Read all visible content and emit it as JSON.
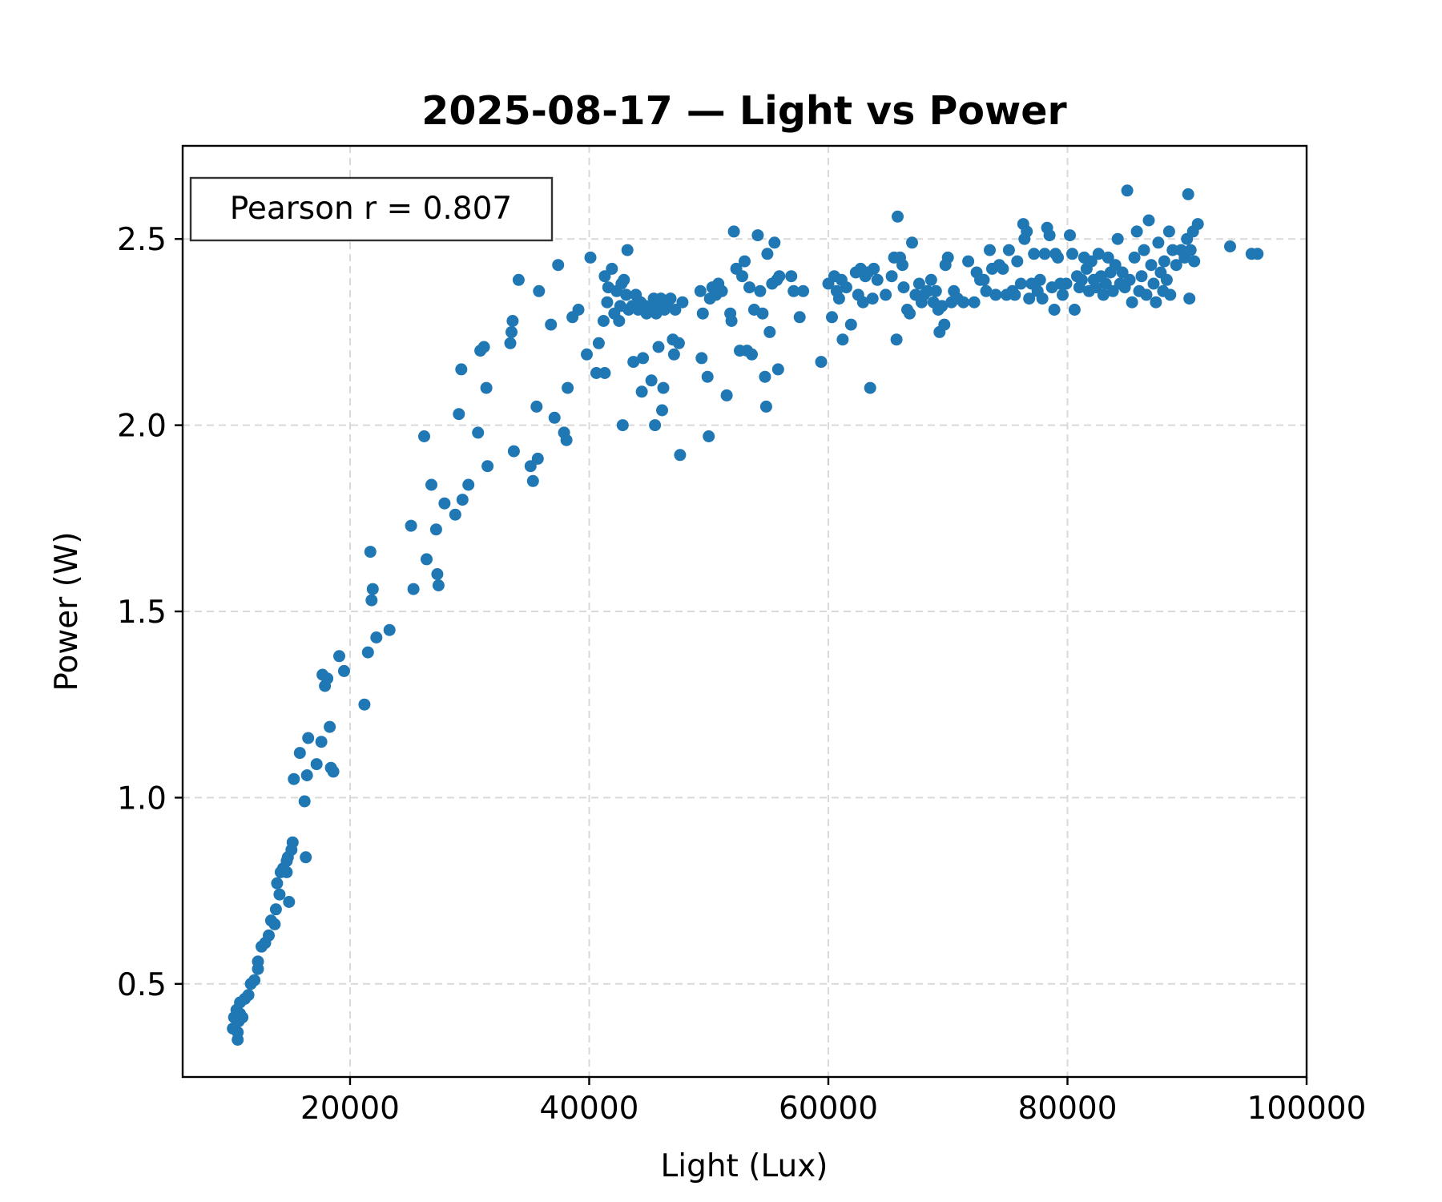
{
  "chart_data": {
    "type": "scatter",
    "title": "2025-08-17 — Light vs Power",
    "xlabel": "Light (Lux)",
    "ylabel": "Power (W)",
    "xlim": [
      6000,
      100000
    ],
    "ylim": [
      0.25,
      2.75
    ],
    "xticks": [
      20000,
      40000,
      60000,
      80000,
      100000
    ],
    "yticks": [
      0.5,
      1.0,
      1.5,
      2.0,
      2.5
    ],
    "xtick_labels": [
      "20000",
      "40000",
      "60000",
      "80000",
      "100000"
    ],
    "ytick_labels": [
      "0.5",
      "1.0",
      "1.5",
      "2.0",
      "2.5"
    ],
    "grid": true,
    "annotation": "Pearson r = 0.807",
    "annotation_placement": "top-left",
    "color": "#1f77b4",
    "points": [
      [
        10200,
        0.38
      ],
      [
        10300,
        0.41
      ],
      [
        10500,
        0.43
      ],
      [
        10600,
        0.35
      ],
      [
        10600,
        0.37
      ],
      [
        10700,
        0.4
      ],
      [
        10800,
        0.42
      ],
      [
        10800,
        0.45
      ],
      [
        11000,
        0.41
      ],
      [
        11200,
        0.46
      ],
      [
        11500,
        0.47
      ],
      [
        11700,
        0.5
      ],
      [
        12000,
        0.51
      ],
      [
        12300,
        0.54
      ],
      [
        12300,
        0.56
      ],
      [
        12600,
        0.6
      ],
      [
        12900,
        0.61
      ],
      [
        13200,
        0.63
      ],
      [
        13400,
        0.67
      ],
      [
        13700,
        0.66
      ],
      [
        13800,
        0.7
      ],
      [
        13900,
        0.77
      ],
      [
        14100,
        0.74
      ],
      [
        14200,
        0.8
      ],
      [
        14400,
        0.81
      ],
      [
        14700,
        0.83
      ],
      [
        14700,
        0.8
      ],
      [
        14800,
        0.84
      ],
      [
        14900,
        0.72
      ],
      [
        15100,
        0.86
      ],
      [
        15200,
        0.88
      ],
      [
        15300,
        1.05
      ],
      [
        15800,
        1.12
      ],
      [
        16200,
        0.99
      ],
      [
        16300,
        0.84
      ],
      [
        16400,
        1.06
      ],
      [
        16500,
        1.16
      ],
      [
        17200,
        1.09
      ],
      [
        17600,
        1.15
      ],
      [
        17700,
        1.33
      ],
      [
        17900,
        1.3
      ],
      [
        18100,
        1.32
      ],
      [
        18300,
        1.19
      ],
      [
        18400,
        1.08
      ],
      [
        18600,
        1.07
      ],
      [
        19100,
        1.38
      ],
      [
        19500,
        1.34
      ],
      [
        21200,
        1.25
      ],
      [
        21500,
        1.39
      ],
      [
        21700,
        1.66
      ],
      [
        21800,
        1.53
      ],
      [
        21900,
        1.56
      ],
      [
        22200,
        1.43
      ],
      [
        23300,
        1.45
      ],
      [
        25100,
        1.73
      ],
      [
        25300,
        1.56
      ],
      [
        26200,
        1.97
      ],
      [
        26400,
        1.64
      ],
      [
        26800,
        1.84
      ],
      [
        27200,
        1.72
      ],
      [
        27300,
        1.6
      ],
      [
        27400,
        1.57
      ],
      [
        27900,
        1.79
      ],
      [
        28800,
        1.76
      ],
      [
        29100,
        2.03
      ],
      [
        29300,
        2.15
      ],
      [
        29400,
        1.8
      ],
      [
        29900,
        1.84
      ],
      [
        30700,
        1.98
      ],
      [
        30900,
        2.2
      ],
      [
        31200,
        2.21
      ],
      [
        31400,
        2.1
      ],
      [
        31500,
        1.89
      ],
      [
        33400,
        2.22
      ],
      [
        33500,
        2.25
      ],
      [
        33600,
        2.28
      ],
      [
        33700,
        1.93
      ],
      [
        34100,
        2.39
      ],
      [
        35100,
        1.89
      ],
      [
        35300,
        1.85
      ],
      [
        35600,
        2.05
      ],
      [
        35700,
        1.91
      ],
      [
        35800,
        2.36
      ],
      [
        36800,
        2.27
      ],
      [
        37100,
        2.02
      ],
      [
        37400,
        2.43
      ],
      [
        37900,
        1.98
      ],
      [
        38100,
        1.96
      ],
      [
        38200,
        2.1
      ],
      [
        38600,
        2.29
      ],
      [
        39100,
        2.31
      ],
      [
        39800,
        2.19
      ],
      [
        40100,
        2.45
      ],
      [
        40600,
        2.14
      ],
      [
        40800,
        2.22
      ],
      [
        41300,
        2.14
      ],
      [
        41200,
        2.28
      ],
      [
        41300,
        2.4
      ],
      [
        41500,
        2.33
      ],
      [
        41600,
        2.37
      ],
      [
        41900,
        2.42
      ],
      [
        42100,
        2.3
      ],
      [
        42300,
        2.36
      ],
      [
        42500,
        2.28
      ],
      [
        42600,
        2.32
      ],
      [
        42700,
        2.38
      ],
      [
        42800,
        2.0
      ],
      [
        42900,
        2.39
      ],
      [
        43100,
        2.35
      ],
      [
        43200,
        2.47
      ],
      [
        43300,
        2.31
      ],
      [
        43600,
        2.32
      ],
      [
        43700,
        2.17
      ],
      [
        43900,
        2.35
      ],
      [
        44100,
        2.31
      ],
      [
        44300,
        2.33
      ],
      [
        44400,
        2.09
      ],
      [
        44500,
        2.18
      ],
      [
        44700,
        2.32
      ],
      [
        44800,
        2.3
      ],
      [
        45100,
        2.31
      ],
      [
        45200,
        2.12
      ],
      [
        45400,
        2.34
      ],
      [
        45500,
        2.0
      ],
      [
        45600,
        2.3
      ],
      [
        45700,
        2.33
      ],
      [
        45800,
        2.21
      ],
      [
        46000,
        2.34
      ],
      [
        46100,
        2.04
      ],
      [
        46200,
        2.1
      ],
      [
        46300,
        2.31
      ],
      [
        46500,
        2.33
      ],
      [
        46800,
        2.34
      ],
      [
        47000,
        2.23
      ],
      [
        47100,
        2.19
      ],
      [
        47200,
        2.31
      ],
      [
        47500,
        2.22
      ],
      [
        47600,
        1.92
      ],
      [
        47800,
        2.33
      ],
      [
        49300,
        2.36
      ],
      [
        49400,
        2.18
      ],
      [
        49500,
        2.3
      ],
      [
        49900,
        2.13
      ],
      [
        50000,
        1.97
      ],
      [
        50100,
        2.34
      ],
      [
        50300,
        2.37
      ],
      [
        50600,
        2.35
      ],
      [
        50800,
        2.38
      ],
      [
        51100,
        2.36
      ],
      [
        51500,
        2.08
      ],
      [
        51800,
        2.3
      ],
      [
        51900,
        2.28
      ],
      [
        52100,
        2.52
      ],
      [
        52300,
        2.42
      ],
      [
        52600,
        2.2
      ],
      [
        52800,
        2.4
      ],
      [
        53000,
        2.44
      ],
      [
        53200,
        2.2
      ],
      [
        53400,
        2.37
      ],
      [
        53600,
        2.19
      ],
      [
        53800,
        2.31
      ],
      [
        54100,
        2.51
      ],
      [
        54300,
        2.36
      ],
      [
        54500,
        2.3
      ],
      [
        54700,
        2.13
      ],
      [
        54800,
        2.05
      ],
      [
        54900,
        2.46
      ],
      [
        55100,
        2.25
      ],
      [
        55300,
        2.38
      ],
      [
        55500,
        2.49
      ],
      [
        55700,
        2.39
      ],
      [
        55800,
        2.15
      ],
      [
        55900,
        2.4
      ],
      [
        56900,
        2.4
      ],
      [
        57100,
        2.36
      ],
      [
        57600,
        2.29
      ],
      [
        57900,
        2.36
      ],
      [
        59400,
        2.17
      ],
      [
        60000,
        2.38
      ],
      [
        60300,
        2.29
      ],
      [
        60500,
        2.4
      ],
      [
        60700,
        2.36
      ],
      [
        60900,
        2.34
      ],
      [
        61100,
        2.39
      ],
      [
        61200,
        2.23
      ],
      [
        61500,
        2.37
      ],
      [
        61900,
        2.27
      ],
      [
        62300,
        2.41
      ],
      [
        62500,
        2.35
      ],
      [
        62700,
        2.42
      ],
      [
        62900,
        2.33
      ],
      [
        63100,
        2.4
      ],
      [
        63300,
        2.41
      ],
      [
        63500,
        2.1
      ],
      [
        63700,
        2.34
      ],
      [
        63800,
        2.42
      ],
      [
        64100,
        2.39
      ],
      [
        64800,
        2.35
      ],
      [
        65300,
        2.4
      ],
      [
        65500,
        2.45
      ],
      [
        65700,
        2.23
      ],
      [
        65800,
        2.56
      ],
      [
        66000,
        2.45
      ],
      [
        66200,
        2.43
      ],
      [
        66300,
        2.37
      ],
      [
        66600,
        2.31
      ],
      [
        66800,
        2.3
      ],
      [
        67000,
        2.49
      ],
      [
        67300,
        2.35
      ],
      [
        67600,
        2.38
      ],
      [
        67800,
        2.33
      ],
      [
        68000,
        2.35
      ],
      [
        68300,
        2.36
      ],
      [
        68600,
        2.39
      ],
      [
        68800,
        2.33
      ],
      [
        69000,
        2.36
      ],
      [
        69200,
        2.31
      ],
      [
        69300,
        2.25
      ],
      [
        69500,
        2.32
      ],
      [
        69700,
        2.27
      ],
      [
        69800,
        2.43
      ],
      [
        70000,
        2.45
      ],
      [
        70300,
        2.33
      ],
      [
        70500,
        2.36
      ],
      [
        70800,
        2.34
      ],
      [
        71300,
        2.33
      ],
      [
        71700,
        2.44
      ],
      [
        72200,
        2.33
      ],
      [
        72400,
        2.41
      ],
      [
        72700,
        2.39
      ],
      [
        73000,
        2.39
      ],
      [
        73200,
        2.36
      ],
      [
        73500,
        2.47
      ],
      [
        73700,
        2.42
      ],
      [
        74000,
        2.35
      ],
      [
        74300,
        2.43
      ],
      [
        74600,
        2.42
      ],
      [
        74900,
        2.35
      ],
      [
        75100,
        2.47
      ],
      [
        75400,
        2.36
      ],
      [
        75600,
        2.35
      ],
      [
        75800,
        2.44
      ],
      [
        76100,
        2.38
      ],
      [
        76300,
        2.54
      ],
      [
        76400,
        2.5
      ],
      [
        76600,
        2.52
      ],
      [
        76800,
        2.34
      ],
      [
        77000,
        2.38
      ],
      [
        77200,
        2.46
      ],
      [
        77500,
        2.36
      ],
      [
        77700,
        2.39
      ],
      [
        77900,
        2.34
      ],
      [
        78100,
        2.46
      ],
      [
        78300,
        2.53
      ],
      [
        78500,
        2.51
      ],
      [
        78700,
        2.37
      ],
      [
        78900,
        2.31
      ],
      [
        79000,
        2.46
      ],
      [
        79200,
        2.45
      ],
      [
        79400,
        2.38
      ],
      [
        79600,
        2.35
      ],
      [
        79900,
        2.38
      ],
      [
        80200,
        2.51
      ],
      [
        80400,
        2.46
      ],
      [
        80600,
        2.31
      ],
      [
        80800,
        2.4
      ],
      [
        81000,
        2.37
      ],
      [
        81200,
        2.39
      ],
      [
        81400,
        2.45
      ],
      [
        81600,
        2.42
      ],
      [
        81800,
        2.36
      ],
      [
        82000,
        2.44
      ],
      [
        82200,
        2.39
      ],
      [
        82400,
        2.37
      ],
      [
        82600,
        2.46
      ],
      [
        82800,
        2.4
      ],
      [
        83000,
        2.35
      ],
      [
        83200,
        2.38
      ],
      [
        83400,
        2.45
      ],
      [
        83600,
        2.41
      ],
      [
        83800,
        2.36
      ],
      [
        84000,
        2.43
      ],
      [
        84200,
        2.5
      ],
      [
        84400,
        2.38
      ],
      [
        84600,
        2.41
      ],
      [
        84800,
        2.37
      ],
      [
        85000,
        2.63
      ],
      [
        85200,
        2.39
      ],
      [
        85400,
        2.33
      ],
      [
        85600,
        2.45
      ],
      [
        85800,
        2.52
      ],
      [
        86000,
        2.36
      ],
      [
        86200,
        2.4
      ],
      [
        86400,
        2.47
      ],
      [
        86600,
        2.35
      ],
      [
        86800,
        2.55
      ],
      [
        87000,
        2.43
      ],
      [
        87200,
        2.38
      ],
      [
        87400,
        2.33
      ],
      [
        87600,
        2.49
      ],
      [
        87800,
        2.41
      ],
      [
        88000,
        2.36
      ],
      [
        88100,
        2.44
      ],
      [
        88300,
        2.39
      ],
      [
        88500,
        2.52
      ],
      [
        88600,
        2.35
      ],
      [
        88800,
        2.47
      ],
      [
        89100,
        2.43
      ],
      [
        89500,
        2.47
      ],
      [
        89800,
        2.45
      ],
      [
        90000,
        2.5
      ],
      [
        90100,
        2.62
      ],
      [
        90200,
        2.34
      ],
      [
        90300,
        2.47
      ],
      [
        90500,
        2.52
      ],
      [
        90600,
        2.44
      ],
      [
        90900,
        2.54
      ],
      [
        93600,
        2.48
      ],
      [
        95400,
        2.46
      ],
      [
        95900,
        2.46
      ]
    ]
  }
}
